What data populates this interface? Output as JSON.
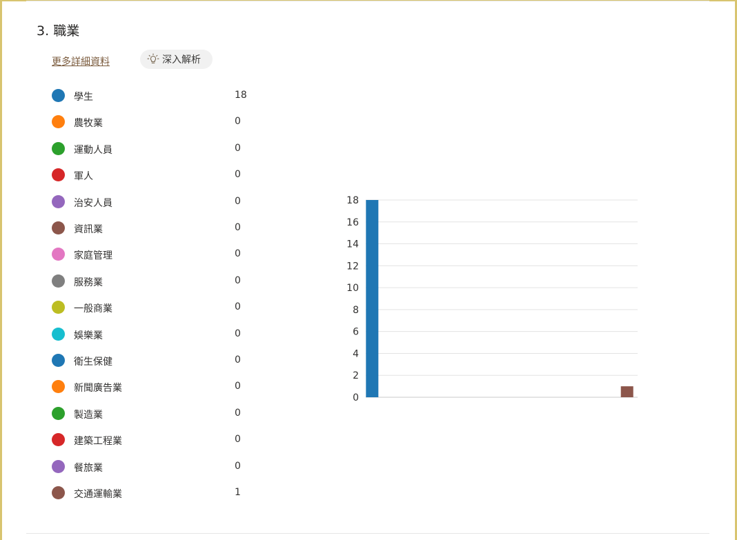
{
  "question": {
    "number": "3.",
    "title": "職業"
  },
  "actions": {
    "details_label": "更多詳細資料",
    "insights_label": "深入解析"
  },
  "colors": {
    "palette": [
      "#1f77b4",
      "#ff7f0e",
      "#2ca02c",
      "#d62728",
      "#9467bd",
      "#8c564b",
      "#e377c2",
      "#7f7f7f",
      "#bcbd22",
      "#17becf"
    ],
    "frame": "#d8c46f",
    "link": "#7a5a3c"
  },
  "chart_data": {
    "type": "bar",
    "categories": [
      "學生",
      "農牧業",
      "運動人員",
      "軍人",
      "治安人員",
      "資訊業",
      "家庭管理",
      "服務業",
      "一般商業",
      "娛樂業",
      "衛生保健",
      "新聞廣告業",
      "製造業",
      "建築工程業",
      "餐旅業",
      "交通運輸業"
    ],
    "values": [
      18,
      0,
      0,
      0,
      0,
      0,
      0,
      0,
      0,
      0,
      0,
      0,
      0,
      0,
      0,
      1
    ],
    "colors": [
      "#1f77b4",
      "#ff7f0e",
      "#2ca02c",
      "#d62728",
      "#9467bd",
      "#8c564b",
      "#e377c2",
      "#7f7f7f",
      "#bcbd22",
      "#17becf",
      "#1f77b4",
      "#ff7f0e",
      "#2ca02c",
      "#d62728",
      "#9467bd",
      "#8c564b"
    ],
    "yticks": [
      0,
      2,
      4,
      6,
      8,
      10,
      12,
      14,
      16,
      18
    ],
    "ylim": [
      0,
      18
    ],
    "grid": true,
    "legend": "left"
  }
}
